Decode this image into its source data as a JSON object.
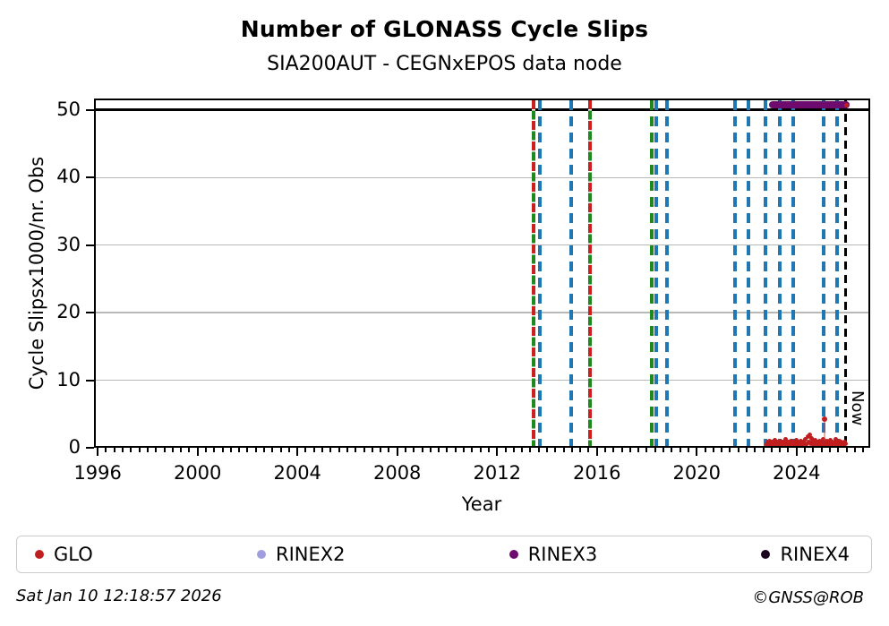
{
  "header": {
    "title": "Number of GLONASS Cycle Slips",
    "subtitle": "SIA200AUT - CEGNxEPOS data node"
  },
  "footer": {
    "timestamp": "Sat Jan 10 12:18:57 2026",
    "credit": "©GNSS@ROB"
  },
  "colors": {
    "glo": "#c01f1f",
    "rinex2": "#9f9fdf",
    "rinex3": "#6e0b6e",
    "rinex4": "#1c051f",
    "event_blue": "#1f77b4",
    "event_green": "#1e8a1e",
    "event_red": "#cc1f1f",
    "now_line": "#000000",
    "grid": "#b8b8b8",
    "outlier_stem": "rgba(210,70,70,0.45)"
  },
  "legend": {
    "items": [
      {
        "label": "GLO",
        "color_key": "glo"
      },
      {
        "label": "RINEX2",
        "color_key": "rinex2"
      },
      {
        "label": "RINEX3",
        "color_key": "rinex3"
      },
      {
        "label": "RINEX4",
        "color_key": "rinex4"
      }
    ]
  },
  "chart_data": {
    "type": "scatter",
    "title": "Number of GLONASS Cycle Slips",
    "subtitle": "SIA200AUT - CEGNxEPOS data node",
    "xlabel": "Year",
    "ylabel": "Cycle Slipsx1000/nr. Obs",
    "xlim": [
      1995.85,
      2026.95
    ],
    "ylim": [
      0,
      51.7
    ],
    "x_major_ticks": [
      1996,
      2000,
      2004,
      2008,
      2012,
      2016,
      2020,
      2024
    ],
    "x_minor_step_years": 0.33333,
    "y_ticks": [
      0,
      10,
      20,
      30,
      40,
      50
    ],
    "grid_y": [
      10,
      20,
      30,
      40
    ],
    "grid": "horizontal-only",
    "threshold_y": 50,
    "now_line": {
      "year": 2025.96,
      "label": "Now"
    },
    "event_lines": [
      {
        "year": 2013.46,
        "style": "red-green-dashed"
      },
      {
        "year": 2013.71,
        "style": "blue-dashed"
      },
      {
        "year": 2014.96,
        "style": "blue-dashed"
      },
      {
        "year": 2015.71,
        "style": "red-green-dashed"
      },
      {
        "year": 2018.21,
        "style": "green-dashed"
      },
      {
        "year": 2018.39,
        "style": "blue-dashed"
      },
      {
        "year": 2018.82,
        "style": "blue-dashed"
      },
      {
        "year": 2021.54,
        "style": "blue-dashed"
      },
      {
        "year": 2022.07,
        "style": "blue-dashed"
      },
      {
        "year": 2022.75,
        "style": "blue-dashed"
      },
      {
        "year": 2023.32,
        "style": "blue-dashed"
      },
      {
        "year": 2023.86,
        "style": "blue-dashed"
      },
      {
        "year": 2025.07,
        "style": "blue-dashed"
      },
      {
        "year": 2025.64,
        "style": "blue-dashed"
      }
    ],
    "rinex3_presence_span": {
      "start_year": 2023.05,
      "end_year": 2025.98,
      "y_value": 50.75
    },
    "glo_series_band": {
      "start_year": 2022.8,
      "step_years": 0.04,
      "values": [
        0.5,
        0.8,
        0.4,
        1.0,
        0.6,
        0.3,
        0.9,
        0.5,
        1.1,
        0.7,
        0.4,
        0.8,
        0.3,
        0.6,
        1.0,
        0.5,
        0.9,
        0.4,
        0.7,
        1.2,
        0.6,
        0.3,
        0.8,
        0.5,
        1.0,
        0.4,
        0.7,
        0.9,
        0.3,
        0.6,
        1.1,
        0.5,
        0.8,
        0.4,
        1.0,
        0.6,
        0.9,
        0.3,
        0.7,
        1.2,
        0.5,
        1.6,
        0.8,
        1.9,
        0.6,
        1.4,
        0.9,
        0.4,
        0.7,
        1.1,
        0.5,
        0.8,
        0.3,
        1.0,
        0.6,
        0.9,
        0.4,
        1.3,
        0.7,
        0.5,
        1.0,
        0.3,
        0.8,
        0.6,
        1.1,
        0.4,
        0.9,
        0.5,
        0.7,
        1.2,
        0.6,
        0.8,
        0.3,
        1.0,
        0.5,
        0.9,
        0.6,
        0.4,
        0.8,
        0.6
      ]
    },
    "glo_outlier": {
      "year": 2025.12,
      "value": 4.2
    },
    "glo_extra_points": [
      [
        2026.0,
        50.7
      ]
    ],
    "legend_position": "bottom-expanded",
    "legend_entries": [
      "GLO",
      "RINEX2",
      "RINEX3",
      "RINEX4"
    ]
  }
}
